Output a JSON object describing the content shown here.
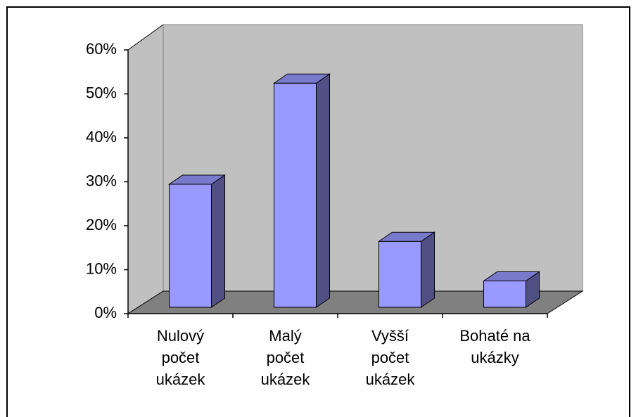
{
  "chart_data": {
    "type": "bar3d",
    "categories": [
      "Nulový\npočet\nukázek",
      "Malý\npočet\nukázek",
      "Vyšší\npočet\nukázek",
      "Bohaté na\nukázky"
    ],
    "values": [
      28,
      51,
      15,
      6
    ],
    "color": "#9999ff",
    "ylim": [
      0,
      60
    ],
    "yticks": [
      {
        "value": 0,
        "label": "0%"
      },
      {
        "value": 10,
        "label": "10%"
      },
      {
        "value": 20,
        "label": "20%"
      },
      {
        "value": 30,
        "label": "30%"
      },
      {
        "value": 40,
        "label": "40%"
      },
      {
        "value": 50,
        "label": "50%"
      },
      {
        "value": 60,
        "label": "60%"
      }
    ],
    "grid": false
  }
}
